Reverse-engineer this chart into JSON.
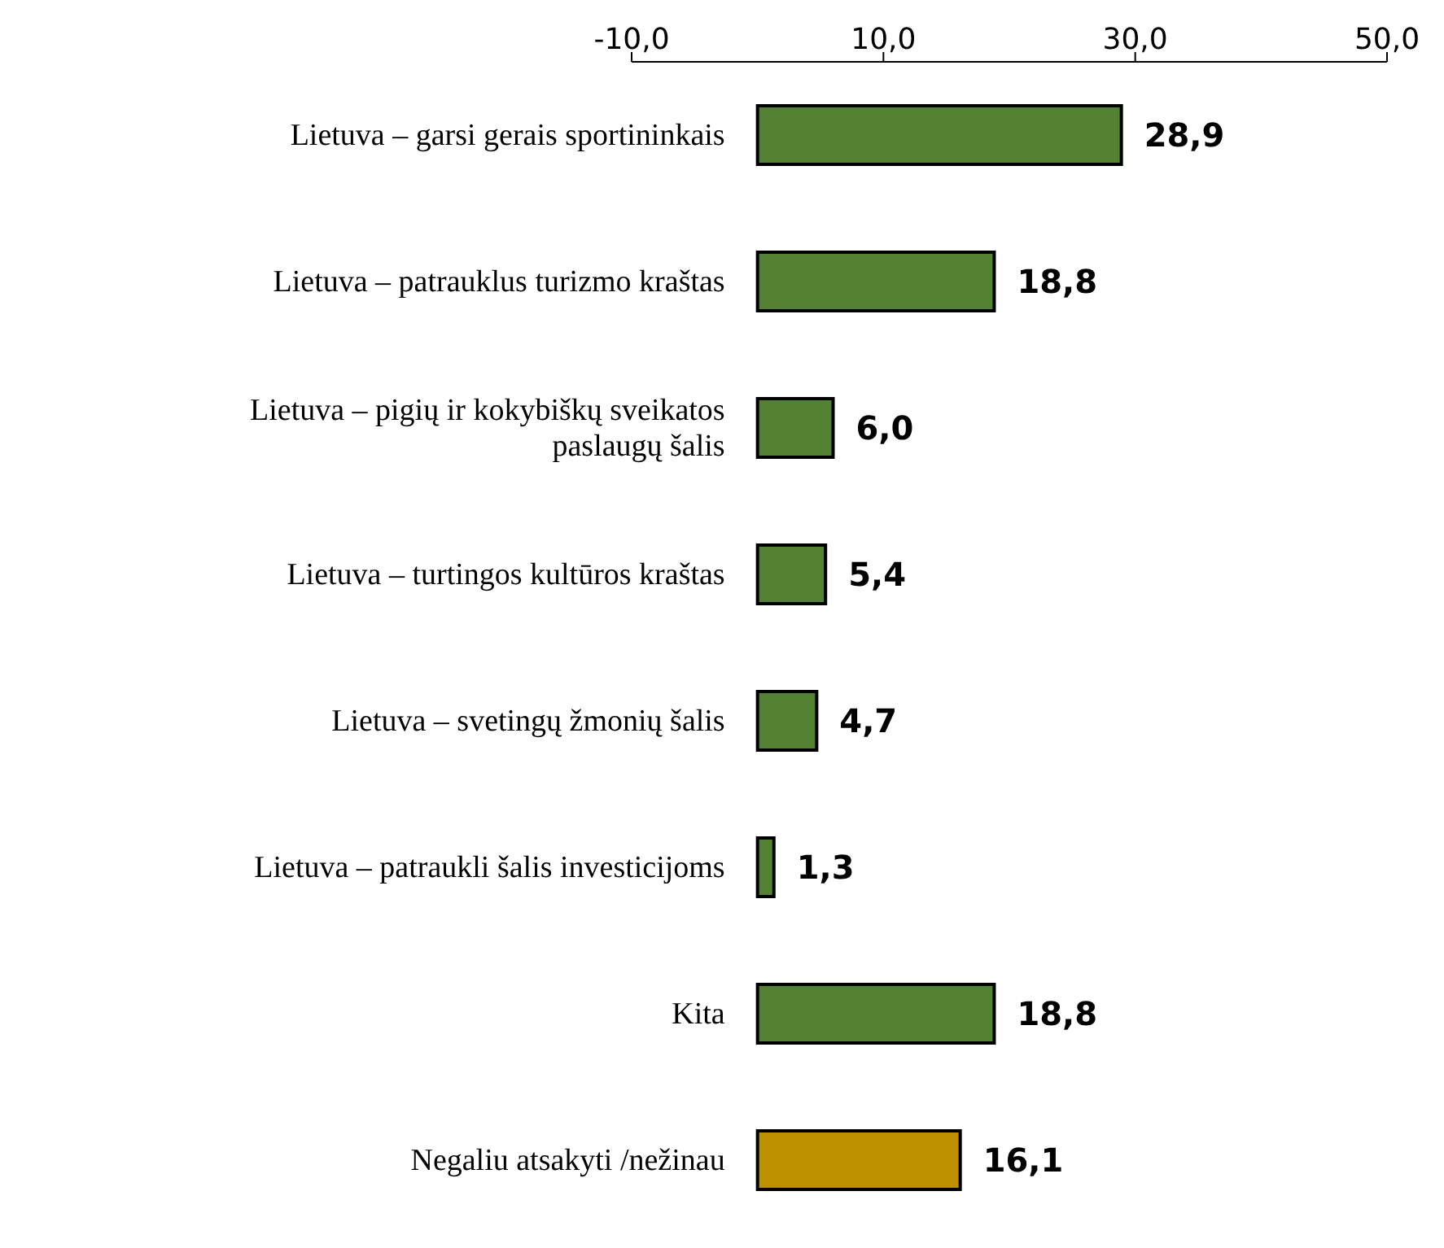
{
  "chart_data": {
    "type": "bar",
    "orientation": "horizontal",
    "categories": [
      "Lietuva – garsi gerais sportininkais",
      "Lietuva – patrauklus turizmo kraštas",
      "Lietuva – pigių ir kokybiškų sveikatos paslaugų šalis",
      "Lietuva – turtingos kultūros kraštas",
      "Lietuva – svetingų žmonių šalis",
      "Lietuva – patraukli šalis investicijoms",
      "Kita",
      "Negaliu atsakyti /nežinau"
    ],
    "values": [
      28.9,
      18.8,
      6.0,
      5.4,
      4.7,
      1.3,
      18.8,
      16.1
    ],
    "colors": [
      "#548235",
      "#548235",
      "#548235",
      "#548235",
      "#548235",
      "#548235",
      "#548235",
      "#bf9000"
    ],
    "value_labels": [
      "28,9",
      "18,8",
      "6,0",
      "5,4",
      "4,7",
      "1,3",
      "18,8",
      "16,1"
    ],
    "xlim": [
      -10,
      50
    ],
    "xticks": [
      {
        "value": -10,
        "label": "-10,0"
      },
      {
        "value": 10,
        "label": "10,0"
      },
      {
        "value": 30,
        "label": "30,0"
      },
      {
        "value": 50,
        "label": "50,0"
      }
    ],
    "grid": false,
    "legend": false
  }
}
